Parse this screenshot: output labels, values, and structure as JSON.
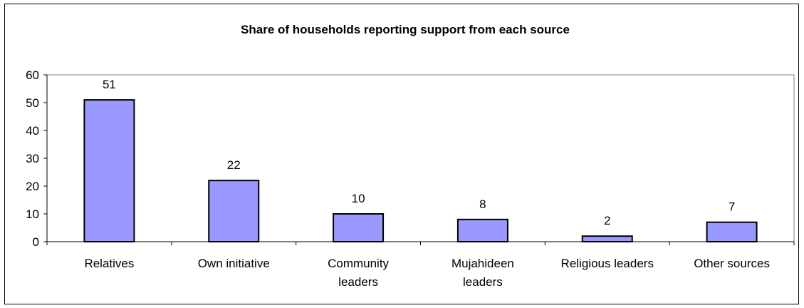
{
  "chart_data": {
    "type": "bar",
    "title": "Share of households reporting support from each source",
    "categories": [
      [
        "Relatives"
      ],
      [
        "Own initiative"
      ],
      [
        "Community",
        "leaders"
      ],
      [
        "Mujahideen",
        "leaders"
      ],
      [
        "Religious leaders"
      ],
      [
        "Other sources"
      ]
    ],
    "values": [
      51,
      22,
      10,
      8,
      2,
      7
    ],
    "data_labels": [
      "51",
      "22",
      "10",
      "8",
      "2",
      "7"
    ],
    "ylim": [
      0,
      60
    ],
    "yticks": [
      0,
      10,
      20,
      30,
      40,
      50,
      60
    ],
    "ytick_labels": [
      "0",
      "10",
      "20",
      "30",
      "40",
      "50",
      "60"
    ],
    "xlabel": "",
    "ylabel": "",
    "grid": false,
    "legend": "none",
    "colors": {
      "bar_fill": "#9999ff",
      "bar_stroke": "#000000",
      "axis": "#000000",
      "plot_border": "#808080"
    }
  }
}
